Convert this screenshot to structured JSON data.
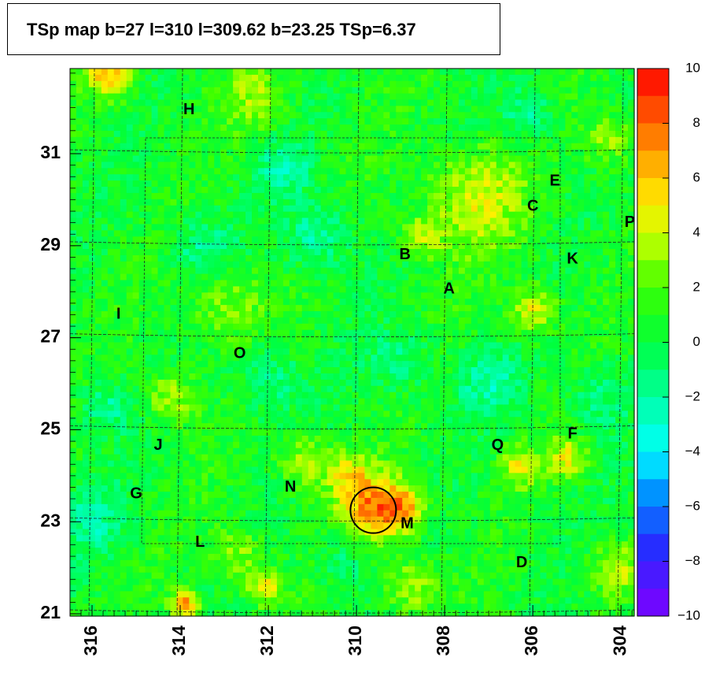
{
  "chart_data": {
    "type": "heatmap",
    "title": "TSp map b=27 l=310 l=309.62 b=23.25 TSp=6.37",
    "x_ticks": [
      316,
      314,
      312,
      310,
      308,
      306,
      304
    ],
    "xlim": [
      316.5,
      303.7
    ],
    "y_ticks": [
      21,
      23,
      25,
      27,
      29,
      31
    ],
    "ylim": [
      20.95,
      32.85
    ],
    "colorbar": {
      "min": -10,
      "max": 10,
      "ticks": [
        10,
        8,
        6,
        4,
        2,
        0,
        -2,
        -4,
        -6,
        -8,
        -10
      ],
      "tick_labels": [
        "10",
        "8",
        "6",
        "4",
        "2",
        "0",
        "−2",
        "−4",
        "−6",
        "−8",
        "−10"
      ]
    },
    "peak": {
      "l": 309.62,
      "b": 23.25,
      "tsp": 6.37
    },
    "sources": [
      {
        "label": "H",
        "l": 313.8,
        "b": 31.95
      },
      {
        "label": "E",
        "l": 305.5,
        "b": 30.4
      },
      {
        "label": "C",
        "l": 306.0,
        "b": 29.85
      },
      {
        "label": "P",
        "l": 303.8,
        "b": 29.5
      },
      {
        "label": "B",
        "l": 308.9,
        "b": 28.8
      },
      {
        "label": "K",
        "l": 305.1,
        "b": 28.7
      },
      {
        "label": "A",
        "l": 307.9,
        "b": 28.05
      },
      {
        "label": "I",
        "l": 315.4,
        "b": 27.5
      },
      {
        "label": "O",
        "l": 312.65,
        "b": 26.65
      },
      {
        "label": "F",
        "l": 305.1,
        "b": 24.9
      },
      {
        "label": "J",
        "l": 314.5,
        "b": 24.65
      },
      {
        "label": "Q",
        "l": 306.8,
        "b": 24.65
      },
      {
        "label": "N",
        "l": 311.5,
        "b": 23.75
      },
      {
        "label": "G",
        "l": 315.0,
        "b": 23.6
      },
      {
        "label": "M",
        "l": 308.85,
        "b": 22.95
      },
      {
        "label": "L",
        "l": 313.55,
        "b": 22.55
      },
      {
        "label": "D",
        "l": 306.25,
        "b": 22.1
      }
    ],
    "hotspots": [
      {
        "l": 309.6,
        "b": 23.3,
        "v": 6.4,
        "r": 0.5
      },
      {
        "l": 308.9,
        "b": 23.3,
        "v": 4.8,
        "r": 0.35
      },
      {
        "l": 310.2,
        "b": 24.0,
        "v": 3.5,
        "r": 0.35
      },
      {
        "l": 315.6,
        "b": 32.7,
        "v": 5.2,
        "r": 0.35
      },
      {
        "l": 313.9,
        "b": 21.2,
        "v": 7.5,
        "r": 0.2
      },
      {
        "l": 312.1,
        "b": 21.6,
        "v": 4.5,
        "r": 0.25
      },
      {
        "l": 307.3,
        "b": 30.0,
        "v": 3.5,
        "r": 0.8
      },
      {
        "l": 306.0,
        "b": 27.6,
        "v": 4.2,
        "r": 0.35
      },
      {
        "l": 308.5,
        "b": 29.2,
        "v": 3.2,
        "r": 0.3
      },
      {
        "l": 306.3,
        "b": 24.2,
        "v": 3.8,
        "r": 0.3
      },
      {
        "l": 305.2,
        "b": 24.4,
        "v": 4.0,
        "r": 0.3
      },
      {
        "l": 314.2,
        "b": 25.7,
        "v": 3.2,
        "r": 0.4
      },
      {
        "l": 304.1,
        "b": 22.0,
        "v": 3.0,
        "r": 0.4
      },
      {
        "l": 308.8,
        "b": 21.6,
        "v": 3.0,
        "r": 0.4
      },
      {
        "l": 313.0,
        "b": 27.8,
        "v": 2.5,
        "r": 0.6
      },
      {
        "l": 311.2,
        "b": 24.3,
        "v": 3.0,
        "r": 0.4
      },
      {
        "l": 312.3,
        "b": 32.2,
        "v": 2.5,
        "r": 0.5
      },
      {
        "l": 304.3,
        "b": 31.3,
        "v": 2.8,
        "r": 0.4
      },
      {
        "l": 312.7,
        "b": 22.3,
        "v": 2.8,
        "r": 0.4
      },
      {
        "l": 310.9,
        "b": 29.2,
        "v": -3.0,
        "r": 0.5
      },
      {
        "l": 307.0,
        "b": 26.0,
        "v": -2.5,
        "r": 0.5
      },
      {
        "l": 315.7,
        "b": 25.5,
        "v": -2.5,
        "r": 0.4
      },
      {
        "l": 311.6,
        "b": 30.7,
        "v": -2.8,
        "r": 0.4
      },
      {
        "l": 313.5,
        "b": 28.9,
        "v": -2.5,
        "r": 0.5
      },
      {
        "l": 316.0,
        "b": 23.1,
        "v": -2.5,
        "r": 0.5
      },
      {
        "l": 306.1,
        "b": 31.9,
        "v": -2.5,
        "r": 0.4
      },
      {
        "l": 312.0,
        "b": 26.1,
        "v": -2.2,
        "r": 0.5
      },
      {
        "l": 309.0,
        "b": 26.5,
        "v": -2.0,
        "r": 0.5
      },
      {
        "l": 310.3,
        "b": 22.2,
        "v": -2.0,
        "r": 0.4
      },
      {
        "l": 304.5,
        "b": 25.7,
        "v": -2.0,
        "r": 0.5
      }
    ]
  }
}
